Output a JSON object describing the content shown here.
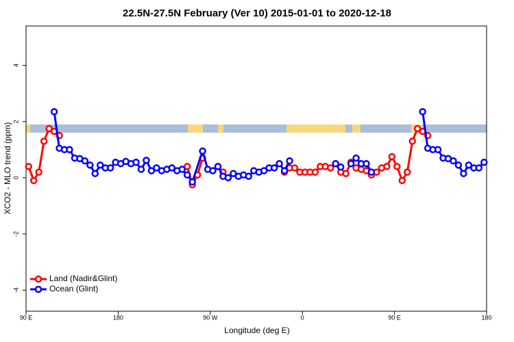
{
  "chart_data": {
    "type": "line",
    "title": "22.5N-27.5N February (Ver 10)   2015-01-01 to 2020-12-18",
    "xlabel": "Longitude (deg E)",
    "ylabel": "XCO2 - MLO trend (ppm)",
    "xlim": [
      90,
      540
    ],
    "xticks": [
      {
        "value": 90,
        "label": "90 E"
      },
      180,
      {
        "value": 270,
        "label": "90 W"
      },
      {
        "value": 360,
        "label": "0"
      },
      {
        "value": 450,
        "label": "90 E"
      },
      {
        "value": 540,
        "label": "180"
      }
    ],
    "ylim": [
      -4.75,
      5.4
    ],
    "yticks": [
      -4,
      -2,
      0,
      2,
      4
    ],
    "legend": "bottomleft",
    "series": [
      {
        "name": "Land (Nadir&Glint)",
        "color": "#ff0000",
        "x": [
          92.5,
          97.5,
          102.5,
          107.5,
          112.5,
          117.5,
          122.5,
          127.5,
          247.5,
          252.5,
          257.5,
          262.5,
          267.5,
          277.5,
          282.5,
          287.5,
          342.5,
          347.5,
          352.5,
          357.5,
          362.5,
          367.5,
          372.5,
          377.5,
          382.5,
          387.5,
          392.5,
          397.5,
          402.5,
          407.5,
          412.5,
          417.5,
          422.5,
          427.5,
          432.5,
          437.5,
          442.5,
          447.5,
          452.5,
          457.5,
          462.5,
          467.5,
          472.5,
          477.5,
          482.5
        ],
        "values": [
          0.4,
          -0.1,
          0.2,
          1.3,
          1.75,
          1.65,
          1.5,
          null,
          0.4,
          -0.25,
          0.1,
          0.7,
          null,
          0.4,
          0.2,
          null,
          0.2,
          0.35,
          0.35,
          0.2,
          0.2,
          0.2,
          0.2,
          0.4,
          0.4,
          0.35,
          0.5,
          0.2,
          0.15,
          0.55,
          0.35,
          0.3,
          0.25,
          0.1,
          0.2,
          0.35,
          0.4,
          0.75,
          0.4,
          -0.1,
          0.2,
          1.3,
          1.75,
          1.65,
          1.5
        ]
      },
      {
        "name": "Ocean (Glint)",
        "color": "#0000ff",
        "x": [
          117.5,
          122.5,
          127.5,
          132.5,
          137.5,
          142.5,
          147.5,
          152.5,
          157.5,
          162.5,
          167.5,
          172.5,
          177.5,
          182.5,
          187.5,
          192.5,
          197.5,
          202.5,
          207.5,
          212.5,
          217.5,
          222.5,
          227.5,
          232.5,
          237.5,
          242.5,
          247.5,
          252.5,
          262.5,
          267.5,
          272.5,
          277.5,
          282.5,
          287.5,
          292.5,
          297.5,
          302.5,
          307.5,
          312.5,
          317.5,
          322.5,
          327.5,
          332.5,
          337.5,
          342.5,
          347.5,
          352.5,
          392.5,
          397.5,
          402.5,
          407.5,
          412.5,
          417.5,
          422.5,
          427.5,
          432.5,
          477.5,
          482.5,
          487.5,
          492.5,
          497.5,
          502.5,
          507.5,
          512.5,
          517.5,
          522.5,
          527.5,
          532.5,
          537.5
        ],
        "values": [
          2.35,
          1.05,
          1.0,
          1.0,
          0.7,
          0.68,
          0.6,
          0.45,
          0.15,
          0.45,
          0.35,
          0.35,
          0.55,
          0.5,
          0.58,
          0.5,
          0.55,
          0.3,
          0.62,
          0.25,
          0.35,
          0.25,
          0.3,
          0.35,
          0.25,
          0.3,
          0.1,
          -0.15,
          0.95,
          0.3,
          0.25,
          0.4,
          0.05,
          0.0,
          0.15,
          0.05,
          0.1,
          0.05,
          0.25,
          0.2,
          0.25,
          0.35,
          0.35,
          0.5,
          0.25,
          0.6,
          null,
          0.5,
          0.38,
          null,
          0.5,
          0.7,
          0.5,
          0.5,
          0.2,
          null,
          2.35,
          1.05,
          1.0,
          1.0,
          0.7,
          0.68,
          0.6,
          0.45,
          0.15,
          0.45,
          0.35,
          0.35,
          0.55
        ]
      }
    ]
  }
}
